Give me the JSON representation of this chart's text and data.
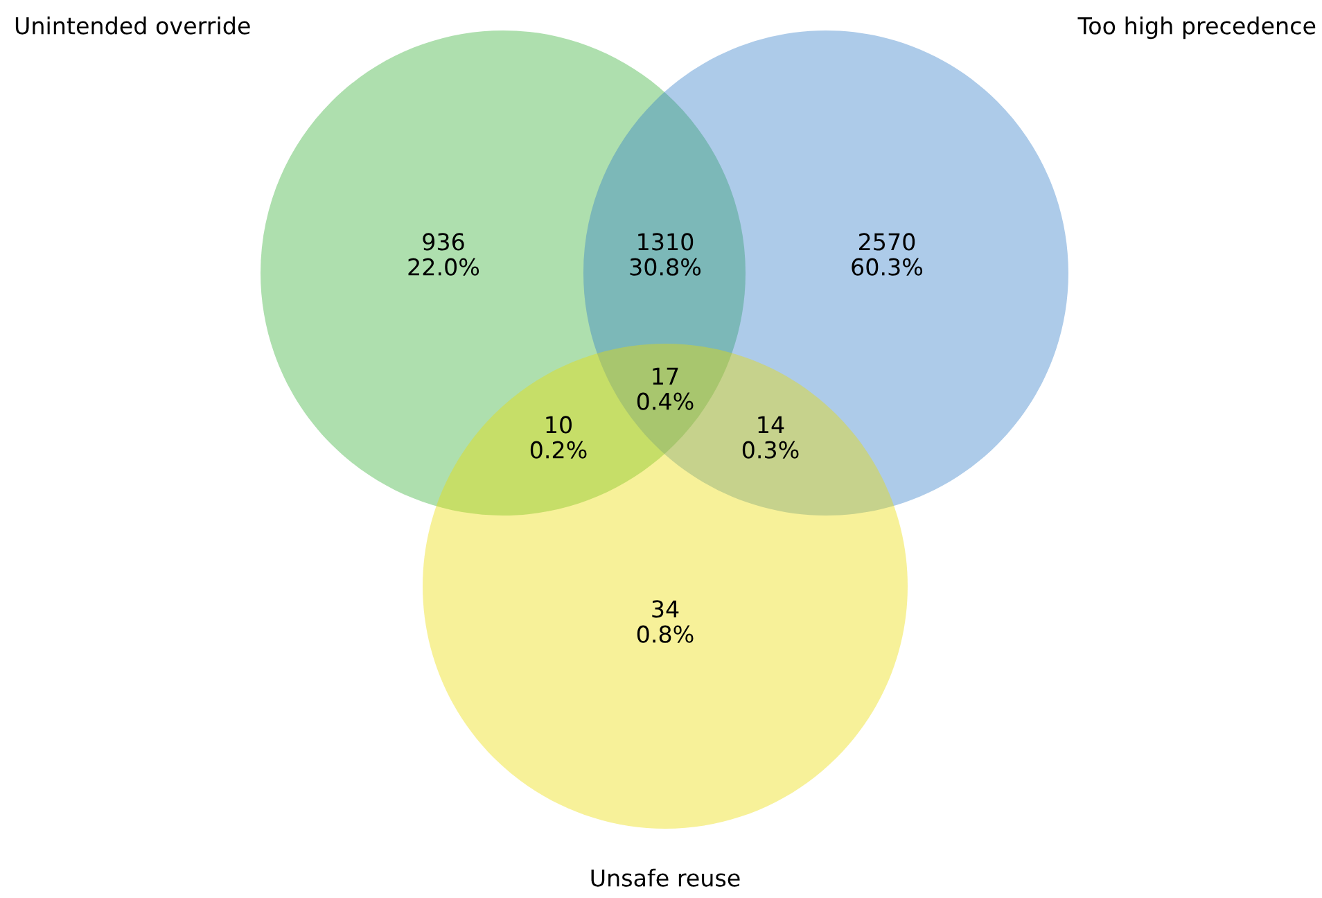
{
  "chart_data": {
    "type": "other",
    "categories": [
      null,
      null,
      null,
      null,
      null,
      null,
      null
    ],
    "values": [
      936,
      1310,
      2570,
      17,
      10,
      14,
      34
    ],
    "data_labels": true,
    "annotations": [
      "Unintended override",
      "Too high precedence",
      "Unsafe reuse",
      "22.0%",
      "30.8%",
      "60.3%",
      "0.4%",
      "0.2%",
      "0.3%",
      "0.8%"
    ]
  }
}
